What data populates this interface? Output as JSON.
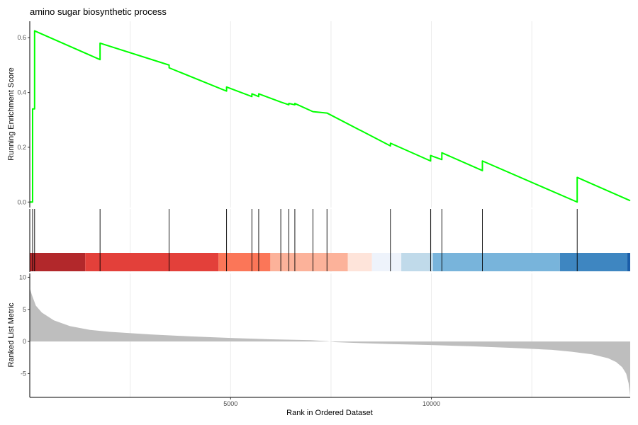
{
  "chart_data": {
    "type": "line",
    "title": "amino sugar biosynthetic process",
    "xlabel": "Rank in Ordered Dataset",
    "x_ticks": [
      5000,
      10000
    ],
    "x_range": [
      0,
      14950
    ],
    "grid": true,
    "panels": {
      "enrichment": {
        "ylabel": "Running Enrichment Score",
        "ylim": [
          -0.02,
          0.66
        ],
        "y_ticks": [
          0.0,
          0.2,
          0.4,
          0.6
        ],
        "line_color": "#00FF00",
        "points": [
          [
            0,
            0.0
          ],
          [
            70,
            0.0
          ],
          [
            70,
            0.34
          ],
          [
            120,
            0.34
          ],
          [
            120,
            0.625
          ],
          [
            1750,
            0.52
          ],
          [
            1750,
            0.58
          ],
          [
            3470,
            0.5
          ],
          [
            3470,
            0.49
          ],
          [
            4900,
            0.405
          ],
          [
            4900,
            0.42
          ],
          [
            5530,
            0.385
          ],
          [
            5530,
            0.395
          ],
          [
            5700,
            0.385
          ],
          [
            5700,
            0.395
          ],
          [
            6250,
            0.365
          ],
          [
            6250,
            0.365
          ],
          [
            6450,
            0.355
          ],
          [
            6450,
            0.36
          ],
          [
            6600,
            0.355
          ],
          [
            6600,
            0.36
          ],
          [
            7050,
            0.33
          ],
          [
            7400,
            0.325
          ],
          [
            8980,
            0.205
          ],
          [
            8980,
            0.215
          ],
          [
            9980,
            0.15
          ],
          [
            9980,
            0.17
          ],
          [
            10260,
            0.155
          ],
          [
            10260,
            0.18
          ],
          [
            11270,
            0.115
          ],
          [
            11270,
            0.15
          ],
          [
            13630,
            0.0
          ],
          [
            13630,
            0.09
          ],
          [
            14950,
            0.005
          ]
        ]
      },
      "hits": [
        70,
        120,
        1750,
        3470,
        4900,
        5530,
        5700,
        6250,
        6450,
        6600,
        7050,
        7400,
        8980,
        9980,
        10260,
        11270,
        13630
      ],
      "color_bar": [
        {
          "from": 0,
          "to": 1380,
          "color": "#B2282B"
        },
        {
          "from": 1380,
          "to": 4700,
          "color": "#E3403A"
        },
        {
          "from": 4700,
          "to": 5990,
          "color": "#FB7658"
        },
        {
          "from": 5990,
          "to": 7920,
          "color": "#FCB29A"
        },
        {
          "from": 7920,
          "to": 8520,
          "color": "#FEE4DA"
        },
        {
          "from": 8520,
          "to": 9250,
          "color": "#EEF3FB"
        },
        {
          "from": 9250,
          "to": 10040,
          "color": "#C0DAEA"
        },
        {
          "from": 10040,
          "to": 13200,
          "color": "#78B4DB"
        },
        {
          "from": 13200,
          "to": 14880,
          "color": "#3E86C1"
        },
        {
          "from": 14880,
          "to": 14950,
          "color": "#1A5DA8"
        }
      ],
      "ranked": {
        "ylabel": "Ranked List Metric",
        "ylim": [
          -8.7,
          10.6
        ],
        "y_ticks": [
          -5,
          0,
          5,
          10
        ],
        "fill_color": "#BEBEBE",
        "points": [
          [
            0,
            8.3
          ],
          [
            50,
            7.3
          ],
          [
            150,
            5.6
          ],
          [
            300,
            4.5
          ],
          [
            600,
            3.3
          ],
          [
            1000,
            2.4
          ],
          [
            1500,
            1.8
          ],
          [
            2000,
            1.5
          ],
          [
            3000,
            1.1
          ],
          [
            4000,
            0.8
          ],
          [
            5000,
            0.55
          ],
          [
            6000,
            0.35
          ],
          [
            7000,
            0.2
          ],
          [
            7400,
            0.05
          ],
          [
            7600,
            -0.1
          ],
          [
            8000,
            -0.2
          ],
          [
            9000,
            -0.4
          ],
          [
            10000,
            -0.55
          ],
          [
            11000,
            -0.75
          ],
          [
            12000,
            -1.0
          ],
          [
            13000,
            -1.3
          ],
          [
            13500,
            -1.6
          ],
          [
            14000,
            -2.0
          ],
          [
            14400,
            -2.6
          ],
          [
            14600,
            -3.2
          ],
          [
            14750,
            -4.0
          ],
          [
            14850,
            -5.0
          ],
          [
            14910,
            -6.5
          ],
          [
            14950,
            -8.5
          ]
        ]
      }
    }
  }
}
